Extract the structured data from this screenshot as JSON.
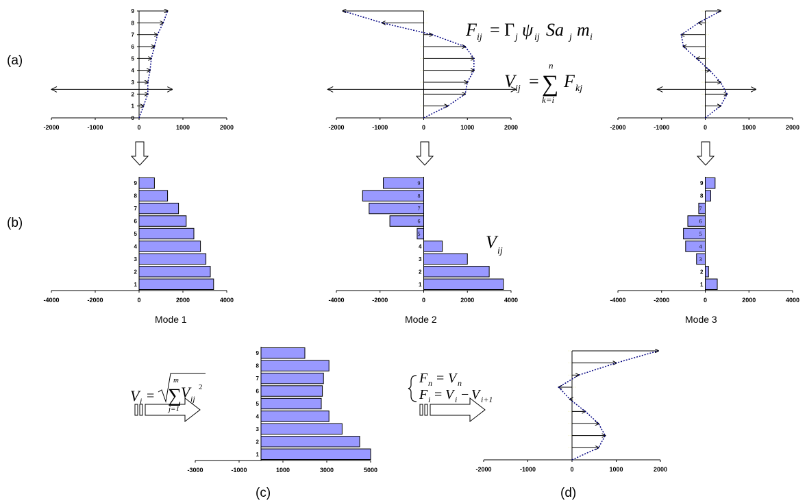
{
  "panels": {
    "a": "(a)",
    "b": "(b)",
    "c": "(c)",
    "d": "(d)"
  },
  "modes": [
    "Mode 1",
    "Mode 2",
    "Mode 3"
  ],
  "equations": {
    "force_lhs": "F",
    "force_lhs_sub": "ij",
    "force_rhs": "= Γ",
    "force_rhs_sub1": "j",
    "force_psi": "ψ",
    "force_psi_sub": "ij",
    "force_sa": "Sa",
    "force_sa_sub": "j",
    "force_m": "m",
    "force_m_sub": "i",
    "shear_lhs": "V",
    "shear_lhs_sub": "ij",
    "shear_eq": "=",
    "shear_sum": "∑",
    "shear_top": "n",
    "shear_bottom": "k=i",
    "shear_rhs": "F",
    "shear_rhs_sub": "kj",
    "vij_label": "V",
    "vij_sub": "ij",
    "srss_lhs": "V",
    "srss_lhs_sub": "i",
    "srss_eq": "=",
    "srss_sum": "∑",
    "srss_top": "m",
    "srss_bottom": "j=1",
    "srss_term": "V",
    "srss_term_sub": "ij",
    "srss_exp": "2",
    "rule1_lhs": "F",
    "rule1_lhs_sub": "n",
    "rule1_eq": "= ",
    "rule1_rhs": "V",
    "rule1_rhs_sub": "n",
    "rule2_lhs": "F",
    "rule2_lhs_sub": "i",
    "rule2_eq": "= ",
    "rule2_rhs": "V",
    "rule2_rhs_sub": "i",
    "rule2_minus": "−",
    "rule2_rhs2": "V",
    "rule2_rhs2_sub": "i+1"
  },
  "colors": {
    "bar_fill": "#9999ff",
    "curve": "#000080",
    "grid": "#e8e8a0",
    "axis": "#000000"
  },
  "chart_data": [
    {
      "id": "a1",
      "type": "force-profile",
      "title": "",
      "x_ticks": [
        "-2000",
        "-1000",
        "0",
        "1000",
        "2000"
      ],
      "xlim": [
        -2000,
        2000
      ],
      "y_ticks": [
        "0",
        "1",
        "2",
        "3",
        "4",
        "5",
        "6",
        "7",
        "8",
        "9"
      ],
      "ylim": [
        0,
        9
      ],
      "levels": [
        1,
        2,
        3,
        4,
        5,
        6,
        7,
        8,
        9
      ],
      "values": [
        100,
        200,
        200,
        250,
        280,
        350,
        420,
        550,
        650
      ],
      "ground_arrow": {
        "level": 2.4,
        "min": -2000,
        "max": 750
      }
    },
    {
      "id": "a2",
      "type": "force-profile",
      "title": "",
      "x_ticks": [
        "-2000",
        "-1000",
        "0",
        "1000",
        "2000"
      ],
      "xlim": [
        -2000,
        2000
      ],
      "y_ticks": [],
      "ylim": [
        0,
        9
      ],
      "levels": [
        1,
        2,
        3,
        4,
        5,
        6,
        7,
        8,
        9
      ],
      "values": [
        550,
        950,
        1000,
        1150,
        1150,
        950,
        200,
        -950,
        -1850
      ],
      "ground_arrow": {
        "level": 2.4,
        "min": -2200,
        "max": 2100
      }
    },
    {
      "id": "a3",
      "type": "force-profile",
      "title": "",
      "x_ticks": [
        "-2000",
        "-1000",
        "0",
        "1000",
        "2000"
      ],
      "xlim": [
        -2000,
        2000
      ],
      "y_ticks": [],
      "ylim": [
        0,
        9
      ],
      "levels": [
        1,
        2,
        3,
        4,
        5,
        6,
        7,
        8,
        9
      ],
      "values": [
        350,
        500,
        350,
        100,
        -200,
        -500,
        -550,
        -150,
        350
      ],
      "ground_arrow": {
        "level": 2.4,
        "min": -1100,
        "max": 1150
      }
    },
    {
      "id": "b1",
      "type": "bar",
      "title": "Mode 1",
      "x_ticks": [
        "-4000",
        "-2000",
        "0",
        "2000",
        "4000"
      ],
      "xlim": [
        -4000,
        4000
      ],
      "categories": [
        "1",
        "2",
        "3",
        "4",
        "5",
        "6",
        "7",
        "8",
        "9"
      ],
      "values": [
        3400,
        3250,
        3050,
        2800,
        2500,
        2150,
        1800,
        1300,
        700
      ],
      "label_inside": false
    },
    {
      "id": "b2",
      "type": "bar",
      "title": "Mode 2",
      "x_ticks": [
        "-4000",
        "-2000",
        "0",
        "2000",
        "4000"
      ],
      "xlim": [
        -4000,
        4000
      ],
      "categories": [
        "1",
        "2",
        "3",
        "4",
        "5",
        "6",
        "7",
        "8",
        "9"
      ],
      "values": [
        3650,
        3000,
        2000,
        850,
        -300,
        -1550,
        -2500,
        -2800,
        -1850
      ],
      "label_inside": true
    },
    {
      "id": "b3",
      "type": "bar",
      "title": "Mode 3",
      "x_ticks": [
        "-4000",
        "-2000",
        "0",
        "2000",
        "4000"
      ],
      "xlim": [
        -4000,
        4000
      ],
      "categories": [
        "1",
        "2",
        "3",
        "4",
        "5",
        "6",
        "7",
        "8",
        "9"
      ],
      "values": [
        550,
        150,
        -400,
        -900,
        -1000,
        -800,
        -300,
        250,
        450
      ],
      "label_inside": true
    },
    {
      "id": "c",
      "type": "bar",
      "title": "",
      "x_ticks": [
        "-3000",
        "-1000",
        "1000",
        "3000",
        "5000"
      ],
      "xlim": [
        -3000,
        5000
      ],
      "categories": [
        "1",
        "2",
        "3",
        "4",
        "5",
        "6",
        "7",
        "8",
        "9"
      ],
      "values": [
        5000,
        4500,
        3700,
        3100,
        2750,
        2800,
        2850,
        3100,
        2000
      ],
      "label_inside": false
    },
    {
      "id": "d",
      "type": "force-profile",
      "title": "",
      "x_ticks": [
        "-2000",
        "-1000",
        "0",
        "1000",
        "2000"
      ],
      "xlim": [
        -2000,
        2000
      ],
      "y_ticks": [],
      "ylim": [
        0,
        9
      ],
      "levels": [
        1,
        2,
        3,
        4,
        5,
        6,
        7,
        8,
        9
      ],
      "values": [
        600,
        750,
        600,
        300,
        -50,
        -300,
        150,
        1000,
        1950
      ],
      "ground_arrow": null
    }
  ]
}
